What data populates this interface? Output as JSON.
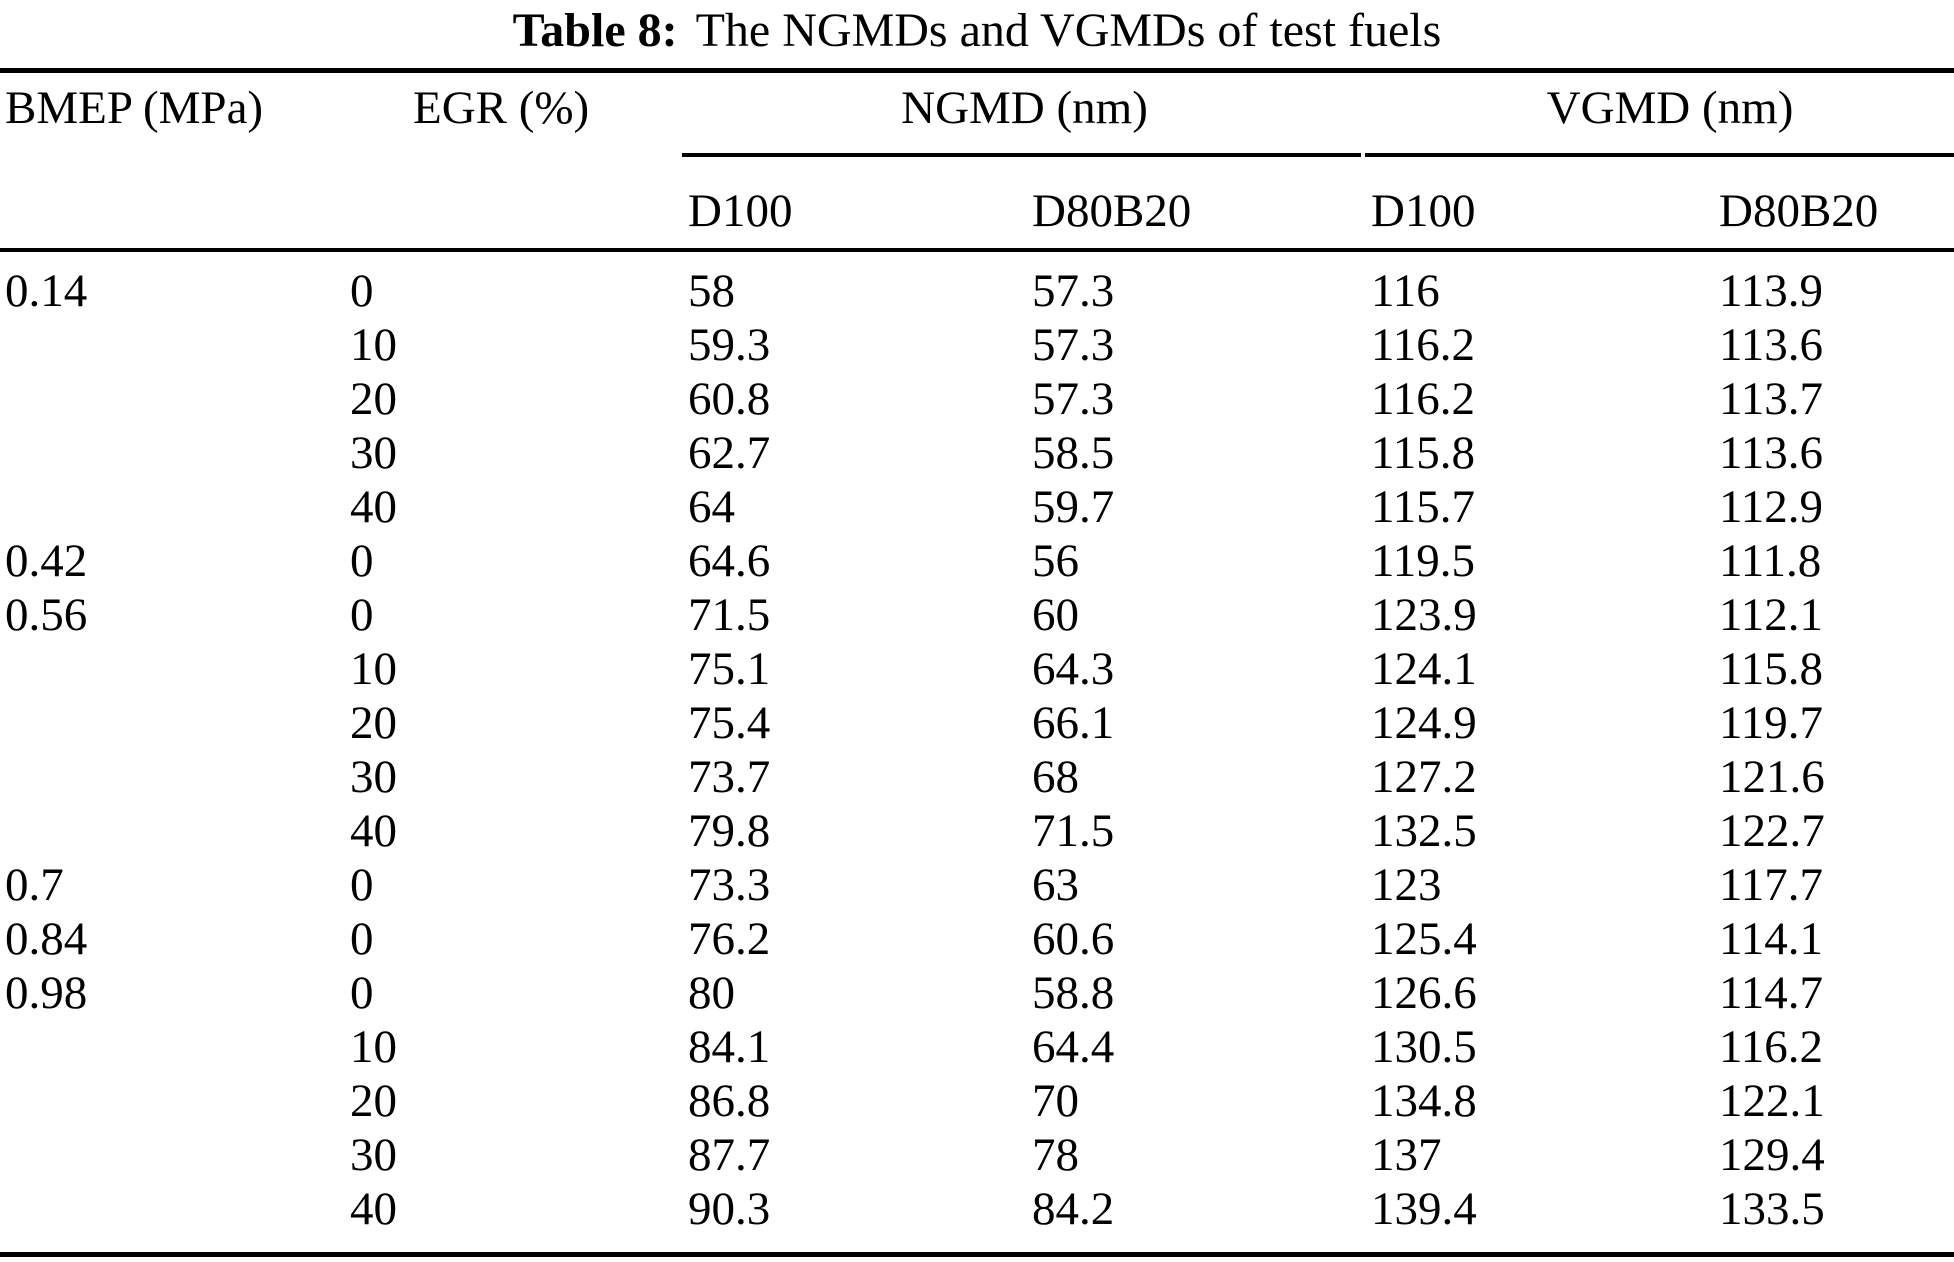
{
  "title": {
    "label": "Table 8:",
    "text": "The NGMDs and VGMDs of test fuels"
  },
  "table": {
    "column_headers": {
      "bmep": "BMEP (MPa)",
      "egr": "EGR (%)",
      "ngmd_group": "NGMD (nm)",
      "vgmd_group": "VGMD (nm)"
    },
    "sub_headers": [
      "D100",
      "D80B20",
      "D100",
      "D80B20"
    ],
    "rows": [
      [
        "0.14",
        "0",
        "58",
        "57.3",
        "116",
        "113.9"
      ],
      [
        "",
        "10",
        "59.3",
        "57.3",
        "116.2",
        "113.6"
      ],
      [
        "",
        "20",
        "60.8",
        "57.3",
        "116.2",
        "113.7"
      ],
      [
        "",
        "30",
        "62.7",
        "58.5",
        "115.8",
        "113.6"
      ],
      [
        "",
        "40",
        "64",
        "59.7",
        "115.7",
        "112.9"
      ],
      [
        "0.42",
        "0",
        "64.6",
        "56",
        "119.5",
        "111.8"
      ],
      [
        "0.56",
        "0",
        "71.5",
        "60",
        "123.9",
        "112.1"
      ],
      [
        "",
        "10",
        "75.1",
        "64.3",
        "124.1",
        "115.8"
      ],
      [
        "",
        "20",
        "75.4",
        "66.1",
        "124.9",
        "119.7"
      ],
      [
        "",
        "30",
        "73.7",
        "68",
        "127.2",
        "121.6"
      ],
      [
        "",
        "40",
        "79.8",
        "71.5",
        "132.5",
        "122.7"
      ],
      [
        "0.7",
        "0",
        "73.3",
        "63",
        "123",
        "117.7"
      ],
      [
        "0.84",
        "0",
        "76.2",
        "60.6",
        "125.4",
        "114.1"
      ],
      [
        "0.98",
        "0",
        "80",
        "58.8",
        "126.6",
        "114.7"
      ],
      [
        "",
        "10",
        "84.1",
        "64.4",
        "130.5",
        "116.2"
      ],
      [
        "",
        "20",
        "86.8",
        "70",
        "134.8",
        "122.1"
      ],
      [
        "",
        "30",
        "87.7",
        "78",
        "137",
        "129.4"
      ],
      [
        "",
        "40",
        "90.3",
        "84.2",
        "139.4",
        "133.5"
      ]
    ]
  },
  "colors": {
    "text": "#000000",
    "background": "#ffffff",
    "rule": "#000000"
  },
  "chart_data": {
    "type": "table",
    "title": "Table 8: The NGMDs and VGMDs of test fuels",
    "columns": [
      "BMEP (MPa)",
      "EGR (%)",
      "NGMD (nm) D100",
      "NGMD (nm) D80B20",
      "VGMD (nm) D100",
      "VGMD (nm) D80B20"
    ],
    "rows": [
      [
        0.14,
        0,
        58,
        57.3,
        116,
        113.9
      ],
      [
        0.14,
        10,
        59.3,
        57.3,
        116.2,
        113.6
      ],
      [
        0.14,
        20,
        60.8,
        57.3,
        116.2,
        113.7
      ],
      [
        0.14,
        30,
        62.7,
        58.5,
        115.8,
        113.6
      ],
      [
        0.14,
        40,
        64,
        59.7,
        115.7,
        112.9
      ],
      [
        0.42,
        0,
        64.6,
        56,
        119.5,
        111.8
      ],
      [
        0.56,
        0,
        71.5,
        60,
        123.9,
        112.1
      ],
      [
        0.56,
        10,
        75.1,
        64.3,
        124.1,
        115.8
      ],
      [
        0.56,
        20,
        75.4,
        66.1,
        124.9,
        119.7
      ],
      [
        0.56,
        30,
        73.7,
        68,
        127.2,
        121.6
      ],
      [
        0.56,
        40,
        79.8,
        71.5,
        132.5,
        122.7
      ],
      [
        0.7,
        0,
        73.3,
        63,
        123,
        117.7
      ],
      [
        0.84,
        0,
        76.2,
        60.6,
        125.4,
        114.1
      ],
      [
        0.98,
        0,
        80,
        58.8,
        126.6,
        114.7
      ],
      [
        0.98,
        10,
        84.1,
        64.4,
        130.5,
        116.2
      ],
      [
        0.98,
        20,
        86.8,
        70,
        134.8,
        122.1
      ],
      [
        0.98,
        30,
        87.7,
        78,
        137,
        129.4
      ],
      [
        0.98,
        40,
        90.3,
        84.2,
        139.4,
        133.5
      ]
    ]
  }
}
